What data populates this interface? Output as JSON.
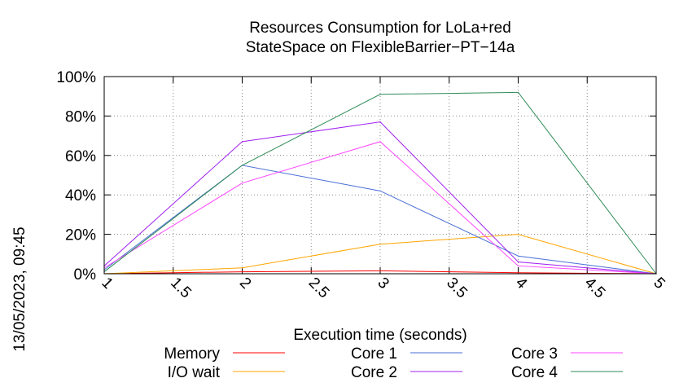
{
  "timestamp": "13/05/2023, 09:45",
  "chart_data": {
    "type": "line",
    "title": "Resources Consumption for LoLa+red",
    "subtitle": "StateSpace on FlexibleBarrier−PT−14a",
    "xlabel": "Execution time (seconds)",
    "ylabel": "",
    "xlim": [
      1,
      5
    ],
    "ylim": [
      0,
      100
    ],
    "x_ticks": [
      "1",
      "1.5",
      "2",
      "2.5",
      "3",
      "3.5",
      "4",
      "4.5",
      "5"
    ],
    "y_ticks": [
      "0%",
      "20%",
      "40%",
      "60%",
      "80%",
      "100%"
    ],
    "grid": true,
    "legend_position": "bottom",
    "series": [
      {
        "name": "Memory",
        "color": "#ff0000",
        "x": [
          1,
          2,
          3,
          4,
          5
        ],
        "y": [
          0,
          1,
          1.5,
          0.5,
          0
        ]
      },
      {
        "name": "I/O wait",
        "color": "#ffa500",
        "x": [
          1,
          2,
          3,
          4,
          5
        ],
        "y": [
          0,
          3,
          15,
          20,
          0
        ]
      },
      {
        "name": "Core 1",
        "color": "#4a6fd6",
        "x": [
          1,
          2,
          3,
          4,
          5
        ],
        "y": [
          2,
          55,
          42,
          9,
          0
        ]
      },
      {
        "name": "Core 2",
        "color": "#a020f0",
        "x": [
          1,
          2,
          3,
          4,
          5
        ],
        "y": [
          4,
          67,
          77,
          6,
          0
        ]
      },
      {
        "name": "Core 3",
        "color": "#ff44ff",
        "x": [
          1,
          2,
          3,
          4,
          5
        ],
        "y": [
          3,
          46,
          67,
          4,
          0
        ]
      },
      {
        "name": "Core 4",
        "color": "#2e8b57",
        "x": [
          1,
          2,
          3,
          4,
          5
        ],
        "y": [
          1,
          55,
          91,
          92,
          0
        ]
      }
    ]
  }
}
